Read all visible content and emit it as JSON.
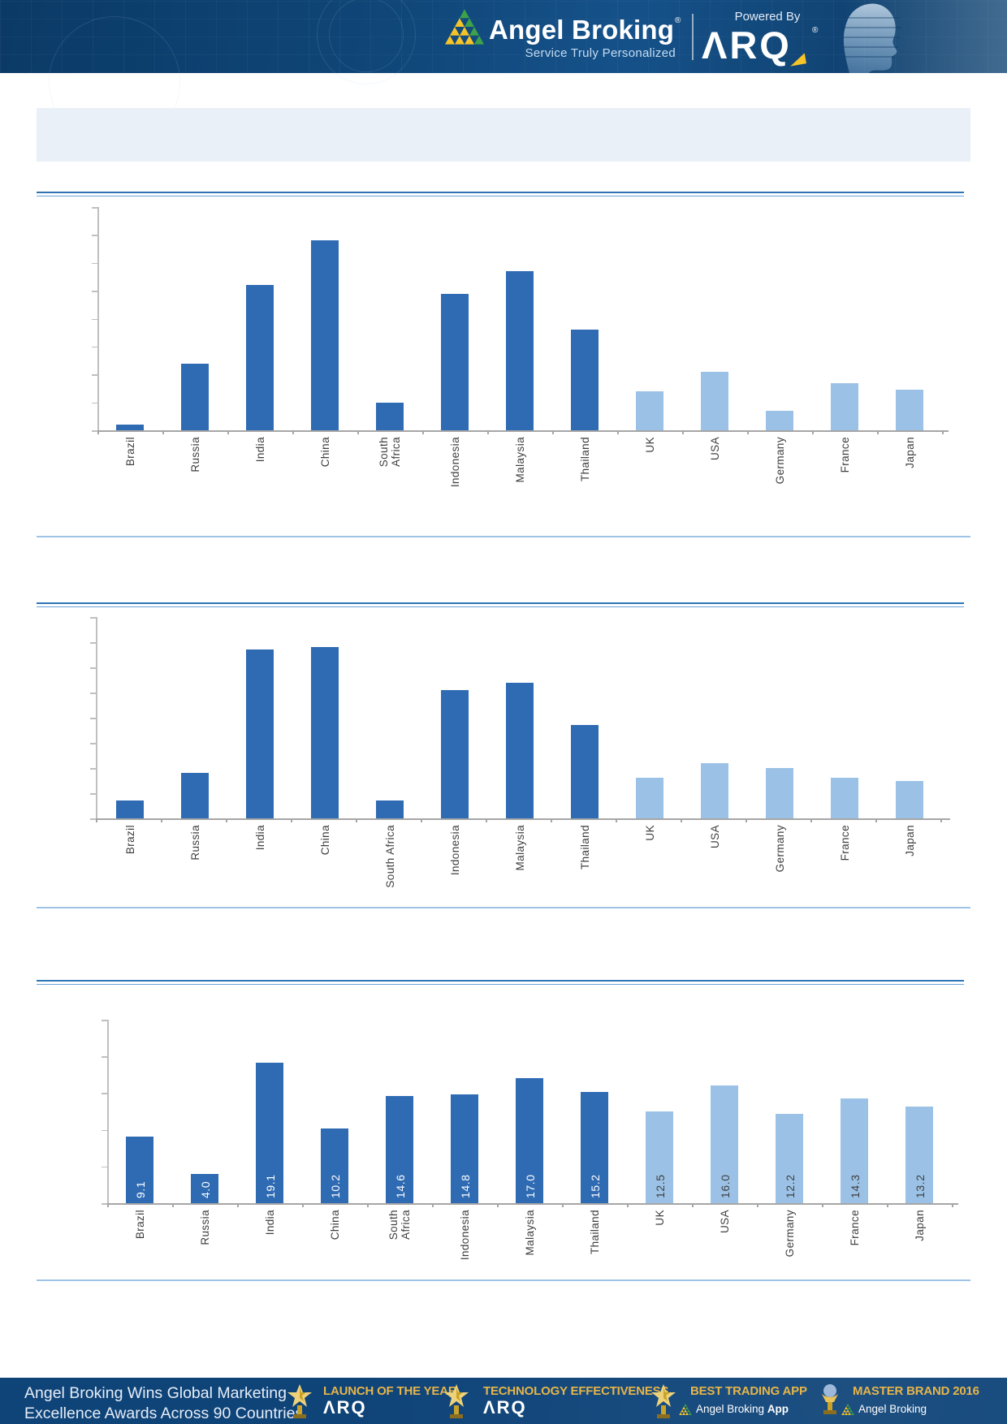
{
  "header": {
    "brand": "Angel Broking",
    "registered": "®",
    "tagline": "Service Truly Personalized",
    "powered_by": "Powered By",
    "arq": "ΛRQ"
  },
  "banner": {
    "text": ""
  },
  "colors": {
    "bar_emerging": "#2F6BB3",
    "bar_developed": "#9BC2E6",
    "axis_gray": "#BFBFBF",
    "baseline_gray": "#A6A6A6",
    "rule_dark_blue": "#2E74B5",
    "rule_light_blue": "#9DC3E6",
    "banner_bg": "#E9F0F8",
    "header_bg": "#11497C",
    "footer_bg": "#0F4479",
    "gold": "#E6B54A",
    "logo_yellow": "#F5C428",
    "logo_green": "#3DA249",
    "label_text": "#3F3F3F",
    "value_on_dark": "#FFFFFF",
    "value_on_light": "#3F3F3F"
  },
  "chart_data": [
    {
      "type": "bar",
      "title": "",
      "categories": [
        "Brazil",
        "Russia",
        "India",
        "China",
        "South Africa",
        "Indonesia",
        "Malaysia",
        "Thailand",
        "UK",
        "USA",
        "Germany",
        "France",
        "Japan"
      ],
      "values": [
        0.2,
        2.4,
        5.2,
        6.8,
        1.0,
        4.9,
        5.7,
        3.6,
        1.4,
        2.1,
        0.7,
        1.7,
        1.45
      ],
      "ylim": [
        0,
        8
      ],
      "ytick_step": 1,
      "grid": false,
      "axis_labels_visible": false,
      "data_labels": false,
      "emerging_count": 8,
      "south_africa_two_lines": true
    },
    {
      "type": "bar",
      "title": "",
      "categories": [
        "Brazil",
        "Russia",
        "India",
        "China",
        "South Africa",
        "Indonesia",
        "Malaysia",
        "Thailand",
        "UK",
        "USA",
        "Germany",
        "France",
        "Japan"
      ],
      "values": [
        0.7,
        1.8,
        6.7,
        6.8,
        0.7,
        5.1,
        5.4,
        3.7,
        1.6,
        2.2,
        2.0,
        1.6,
        1.5
      ],
      "ylim": [
        0,
        8
      ],
      "ytick_step": 1,
      "grid": false,
      "axis_labels_visible": false,
      "data_labels": false,
      "emerging_count": 8,
      "south_africa_two_lines": false
    },
    {
      "type": "bar",
      "title": "",
      "categories": [
        "Brazil",
        "Russia",
        "India",
        "China",
        "South Africa",
        "Indonesia",
        "Malaysia",
        "Thailand",
        "UK",
        "USA",
        "Germany",
        "France",
        "Japan"
      ],
      "values": [
        9.1,
        4.0,
        19.1,
        10.2,
        14.6,
        14.8,
        17.0,
        15.2,
        12.5,
        16.0,
        12.2,
        14.3,
        13.2
      ],
      "ylim": [
        0,
        25
      ],
      "ytick_step": 5,
      "grid": false,
      "axis_labels_visible": false,
      "data_labels": true,
      "data_label_decimals": 1,
      "emerging_count": 8,
      "south_africa_two_lines": true
    }
  ],
  "footer": {
    "headline_line1": "Angel Broking Wins Global Marketing",
    "headline_line2": "Excellence Awards Across 90 Countries",
    "awards": [
      {
        "title": "LAUNCH OF THE YEAR",
        "subtitle": "ΛRQ",
        "subtitle_style": "arq",
        "icon": "star-trophy"
      },
      {
        "title": "TECHNOLOGY EFFECTIVENESS",
        "subtitle": "ΛRQ",
        "subtitle_style": "arq",
        "icon": "star-trophy"
      },
      {
        "title": "BEST TRADING APP",
        "subtitle": "Angel Broking App",
        "subtitle_style": "brand",
        "icon": "star-trophy"
      },
      {
        "title": "MASTER BRAND 2016",
        "subtitle": "Angel Broking",
        "subtitle_style": "brand",
        "icon": "globe-trophy"
      }
    ]
  }
}
